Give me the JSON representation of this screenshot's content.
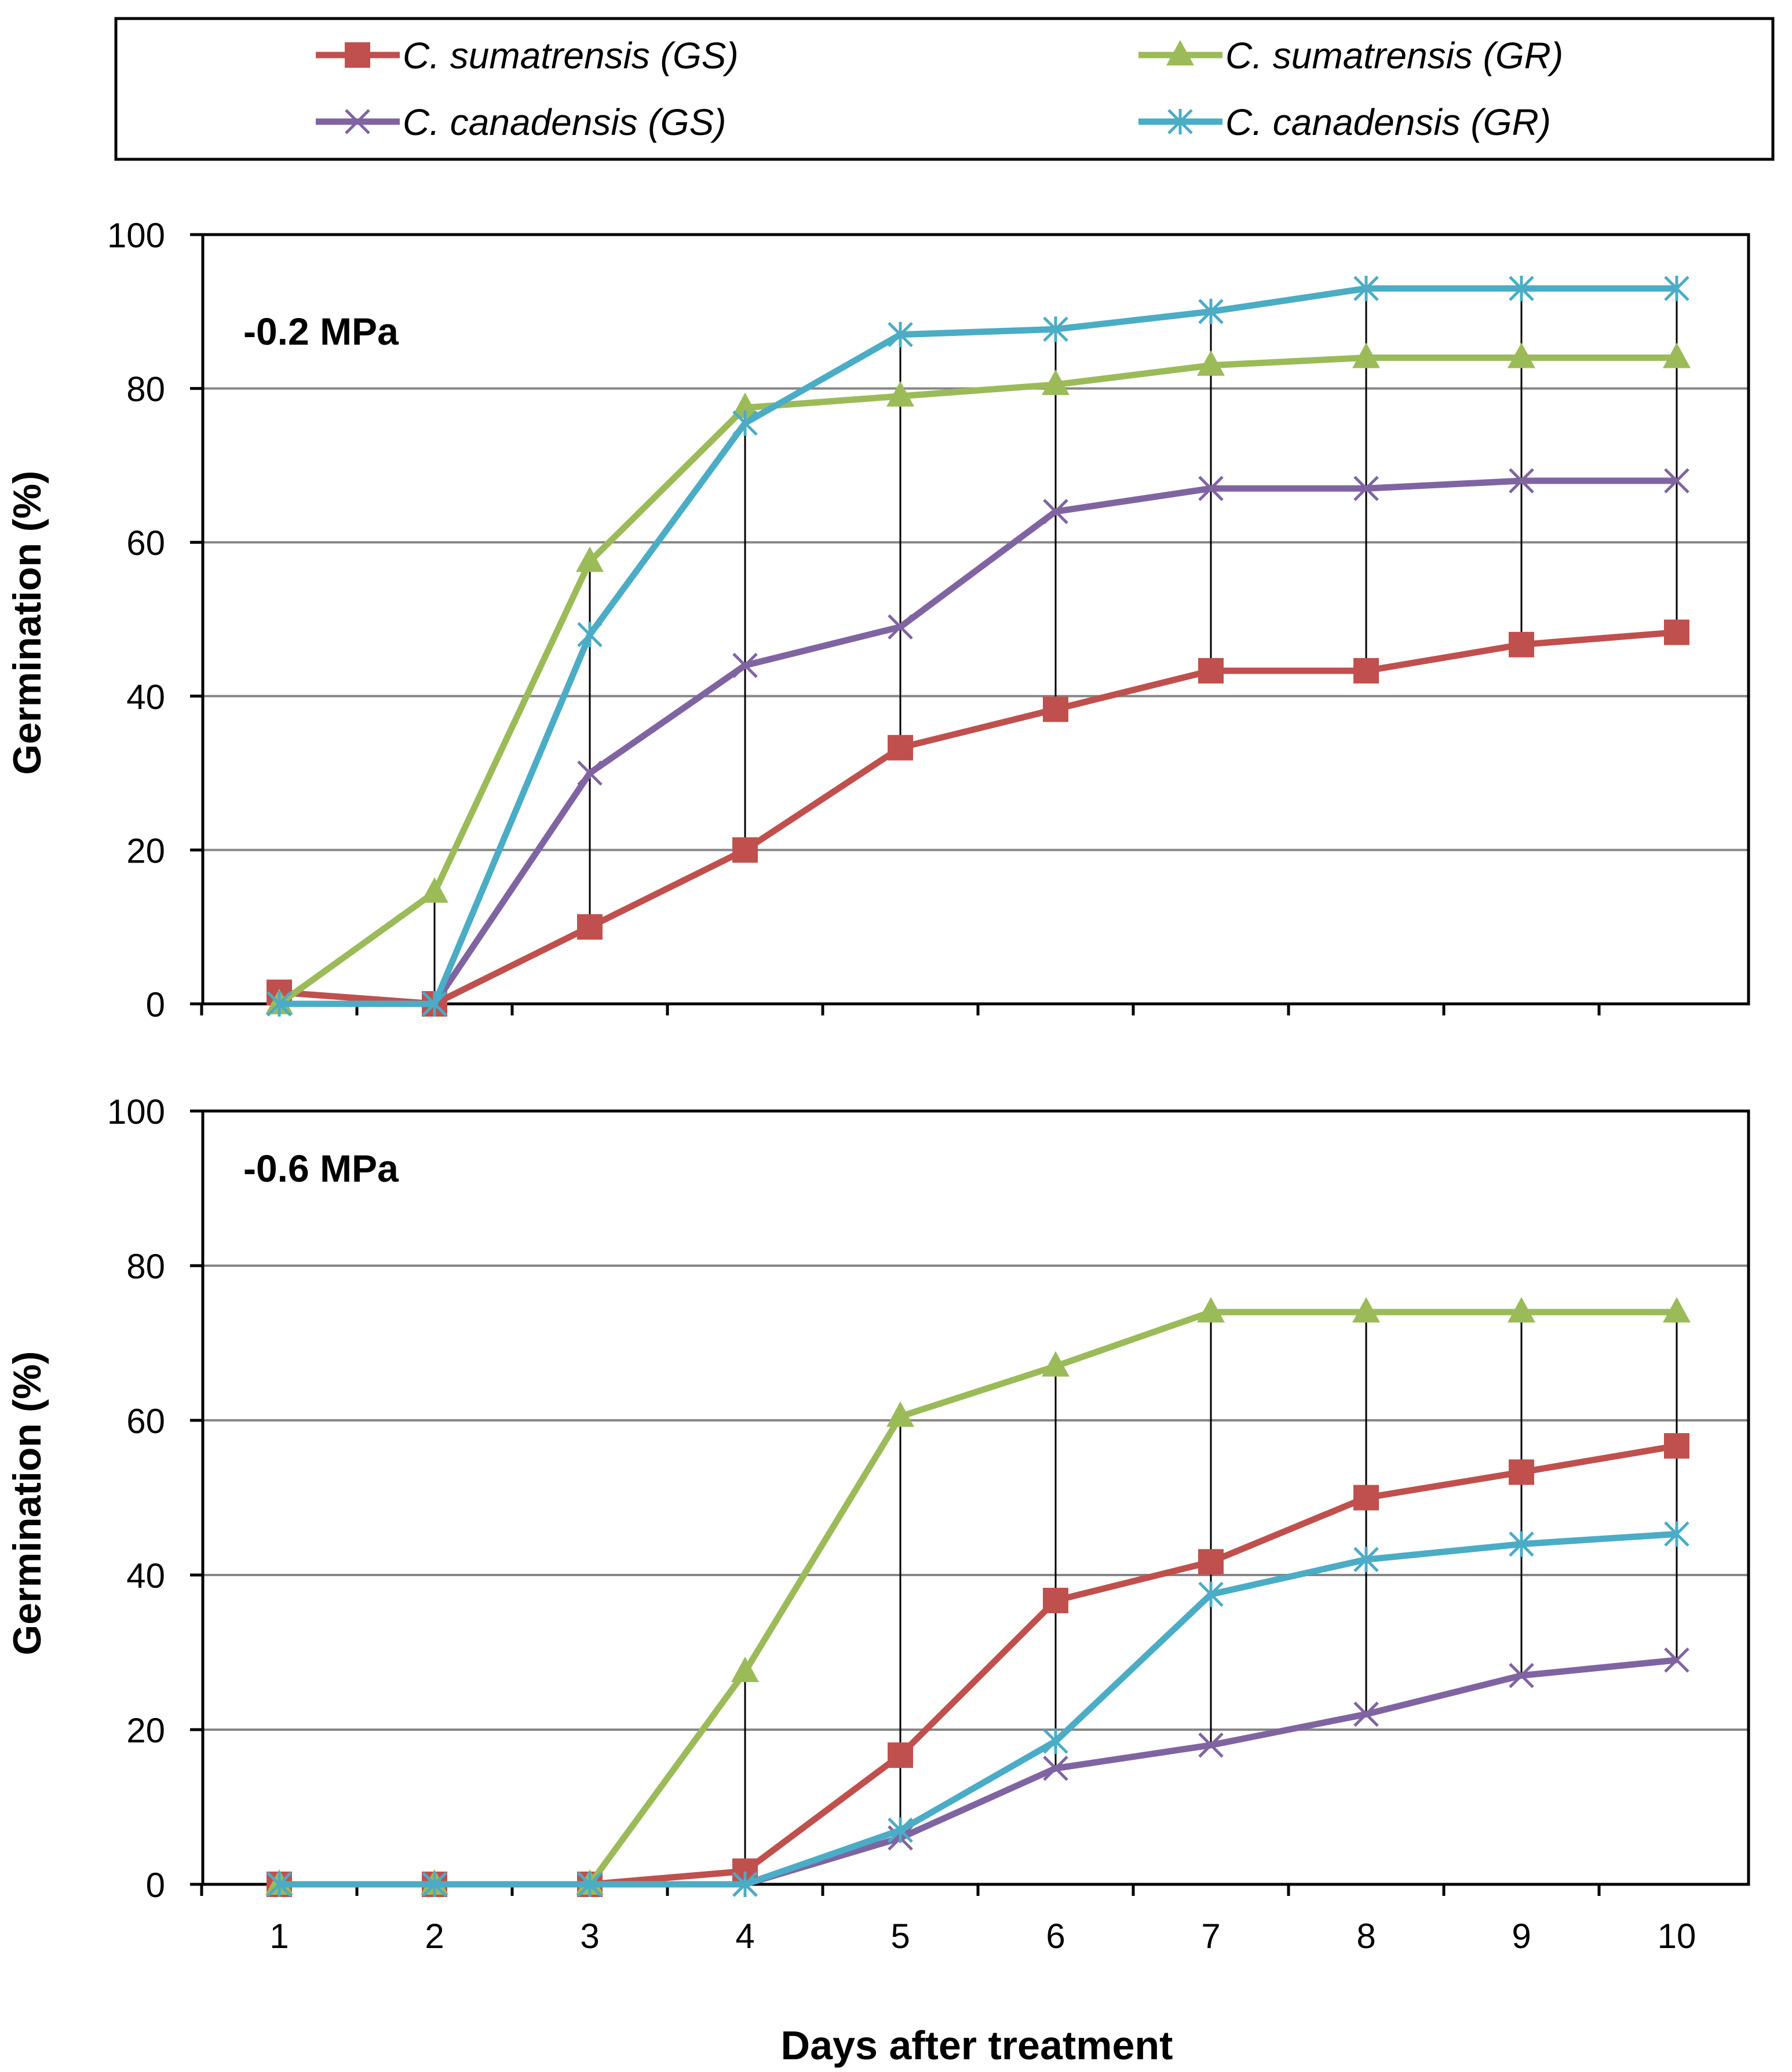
{
  "chart_data": {
    "type": "line",
    "xlabel": "Days after treatment",
    "ylabel": "Germination (%)",
    "x": [
      1,
      2,
      3,
      4,
      5,
      6,
      7,
      8,
      9,
      10
    ],
    "ylim": [
      0,
      100
    ],
    "yticks": [
      0,
      20,
      40,
      60,
      80,
      100
    ],
    "legend": [
      {
        "name": "C. sumatrensis (GS)",
        "color": "#C0504D",
        "marker": "square"
      },
      {
        "name": "C. sumatrensis (GR)",
        "color": "#9BBB59",
        "marker": "triangle"
      },
      {
        "name": "C. canadensis (GS)",
        "color": "#8064A2",
        "marker": "x"
      },
      {
        "name": "C. canadensis (GR)",
        "color": "#4BACC6",
        "marker": "asterisk"
      }
    ],
    "panels": [
      {
        "label": "-0.2 MPa",
        "series": [
          {
            "name": "C. sumatrensis (GS)",
            "values": [
              1.5,
              0,
              10,
              20,
              33.3,
              38.3,
              43.3,
              43.3,
              46.7,
              48.3
            ]
          },
          {
            "name": "C. sumatrensis (GR)",
            "values": [
              0,
              14.5,
              57.5,
              77.5,
              79,
              80.5,
              83,
              84,
              84,
              84
            ]
          },
          {
            "name": "C. canadensis (GS)",
            "values": [
              0,
              0,
              30,
              44,
              49,
              64,
              67,
              67,
              68,
              68
            ]
          },
          {
            "name": "C. canadensis (GR)",
            "values": [
              0,
              0,
              48,
              75.5,
              87,
              87.7,
              90,
              93,
              93,
              93
            ]
          }
        ]
      },
      {
        "label": "-0.6 MPa",
        "series": [
          {
            "name": "C. sumatrensis (GS)",
            "values": [
              0,
              0,
              0,
              1.7,
              16.7,
              36.7,
              41.7,
              50,
              53.3,
              56.7
            ]
          },
          {
            "name": "C. sumatrensis (GR)",
            "values": [
              0,
              0,
              0,
              27.5,
              60.5,
              67,
              74,
              74,
              74,
              74
            ]
          },
          {
            "name": "C. canadensis (GS)",
            "values": [
              0,
              0,
              0,
              0,
              6,
              15,
              18,
              22,
              27,
              29
            ]
          },
          {
            "name": "C. canadensis (GR)",
            "values": [
              0,
              0,
              0,
              0,
              7,
              18.5,
              37.5,
              42,
              44,
              45.3
            ]
          }
        ]
      }
    ]
  }
}
